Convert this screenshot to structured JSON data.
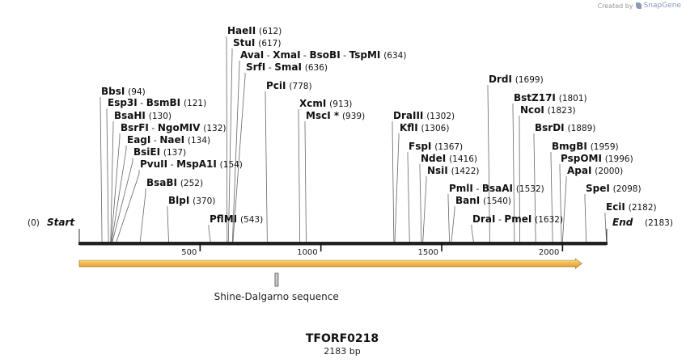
{
  "credit": {
    "created_by": "Created by",
    "brand": "SnapGene"
  },
  "map": {
    "name": "TFORF0218",
    "length_label": "2183 bp",
    "length": 2183,
    "start": {
      "label": "Start",
      "pos": 0,
      "pos_label": "(0)"
    },
    "end": {
      "label": "End",
      "pos": 2183,
      "pos_label": "(2183)"
    },
    "ticks": [
      {
        "pos": 500,
        "label": "500"
      },
      {
        "pos": 1000,
        "label": "1000"
      },
      {
        "pos": 1500,
        "label": "1500"
      },
      {
        "pos": 2000,
        "label": "2000"
      }
    ],
    "orf": {
      "start": 0,
      "end": 2080,
      "color": "#f0b84c"
    },
    "features": [
      {
        "label": "Shine-Dalgarno sequence",
        "start": 810,
        "end": 822
      }
    ],
    "sites": [
      {
        "names": [
          "HaeII"
        ],
        "pos": "(612)",
        "bp": 612
      },
      {
        "names": [
          "StuI"
        ],
        "pos": "(617)",
        "bp": 617
      },
      {
        "names": [
          "AvaI",
          "XmaI",
          "BsoBI",
          "TspMI"
        ],
        "pos": "(634)",
        "bp": 634
      },
      {
        "names": [
          "SrfI",
          "SmaI"
        ],
        "pos": "(636)",
        "bp": 636
      },
      {
        "names": [
          "PciI"
        ],
        "pos": "(778)",
        "bp": 778
      },
      {
        "names": [
          "BbsI"
        ],
        "pos": "(94)",
        "bp": 94
      },
      {
        "names": [
          "Esp3I",
          "BsmBI"
        ],
        "pos": "(121)",
        "bp": 121
      },
      {
        "names": [
          "BsaHI"
        ],
        "pos": "(130)",
        "bp": 130
      },
      {
        "names": [
          "BsrFI",
          "NgoMIV"
        ],
        "pos": "(132)",
        "bp": 132
      },
      {
        "names": [
          "EagI",
          "NaeI"
        ],
        "pos": "(134)",
        "bp": 134
      },
      {
        "names": [
          "BsiEI"
        ],
        "pos": "(137)",
        "bp": 137
      },
      {
        "names": [
          "PvuII",
          "MspA1I"
        ],
        "pos": "(154)",
        "bp": 154
      },
      {
        "names": [
          "BsaBI"
        ],
        "pos": "(252)",
        "bp": 252
      },
      {
        "names": [
          "BlpI"
        ],
        "pos": "(370)",
        "bp": 370
      },
      {
        "names": [
          "PflMI"
        ],
        "pos": "(543)",
        "bp": 543
      },
      {
        "names": [
          "XcmI"
        ],
        "pos": "(913)",
        "bp": 913
      },
      {
        "names": [
          "MscI *"
        ],
        "pos": "(939)",
        "bp": 939
      },
      {
        "names": [
          "DraIII"
        ],
        "pos": "(1302)",
        "bp": 1302
      },
      {
        "names": [
          "KflI"
        ],
        "pos": "(1306)",
        "bp": 1306
      },
      {
        "names": [
          "FspI"
        ],
        "pos": "(1367)",
        "bp": 1367
      },
      {
        "names": [
          "NdeI"
        ],
        "pos": "(1416)",
        "bp": 1416
      },
      {
        "names": [
          "NsiI"
        ],
        "pos": "(1422)",
        "bp": 1422
      },
      {
        "names": [
          "PmlI",
          "BsaAI"
        ],
        "pos": "(1532)",
        "bp": 1532
      },
      {
        "names": [
          "BanI"
        ],
        "pos": "(1540)",
        "bp": 1540
      },
      {
        "names": [
          "DraI",
          "PmeI"
        ],
        "pos": "(1632)",
        "bp": 1632
      },
      {
        "names": [
          "DrdI"
        ],
        "pos": "(1699)",
        "bp": 1699
      },
      {
        "names": [
          "BstZ17I"
        ],
        "pos": "(1801)",
        "bp": 1801
      },
      {
        "names": [
          "NcoI"
        ],
        "pos": "(1823)",
        "bp": 1823
      },
      {
        "names": [
          "BsrDI"
        ],
        "pos": "(1889)",
        "bp": 1889
      },
      {
        "names": [
          "BmgBI"
        ],
        "pos": "(1959)",
        "bp": 1959
      },
      {
        "names": [
          "PspOMI"
        ],
        "pos": "(1996)",
        "bp": 1996
      },
      {
        "names": [
          "ApaI"
        ],
        "pos": "(2000)",
        "bp": 2000
      },
      {
        "names": [
          "SpeI"
        ],
        "pos": "(2098)",
        "bp": 2098
      },
      {
        "names": [
          "EciI"
        ],
        "pos": "(2182)",
        "bp": 2182
      }
    ]
  }
}
